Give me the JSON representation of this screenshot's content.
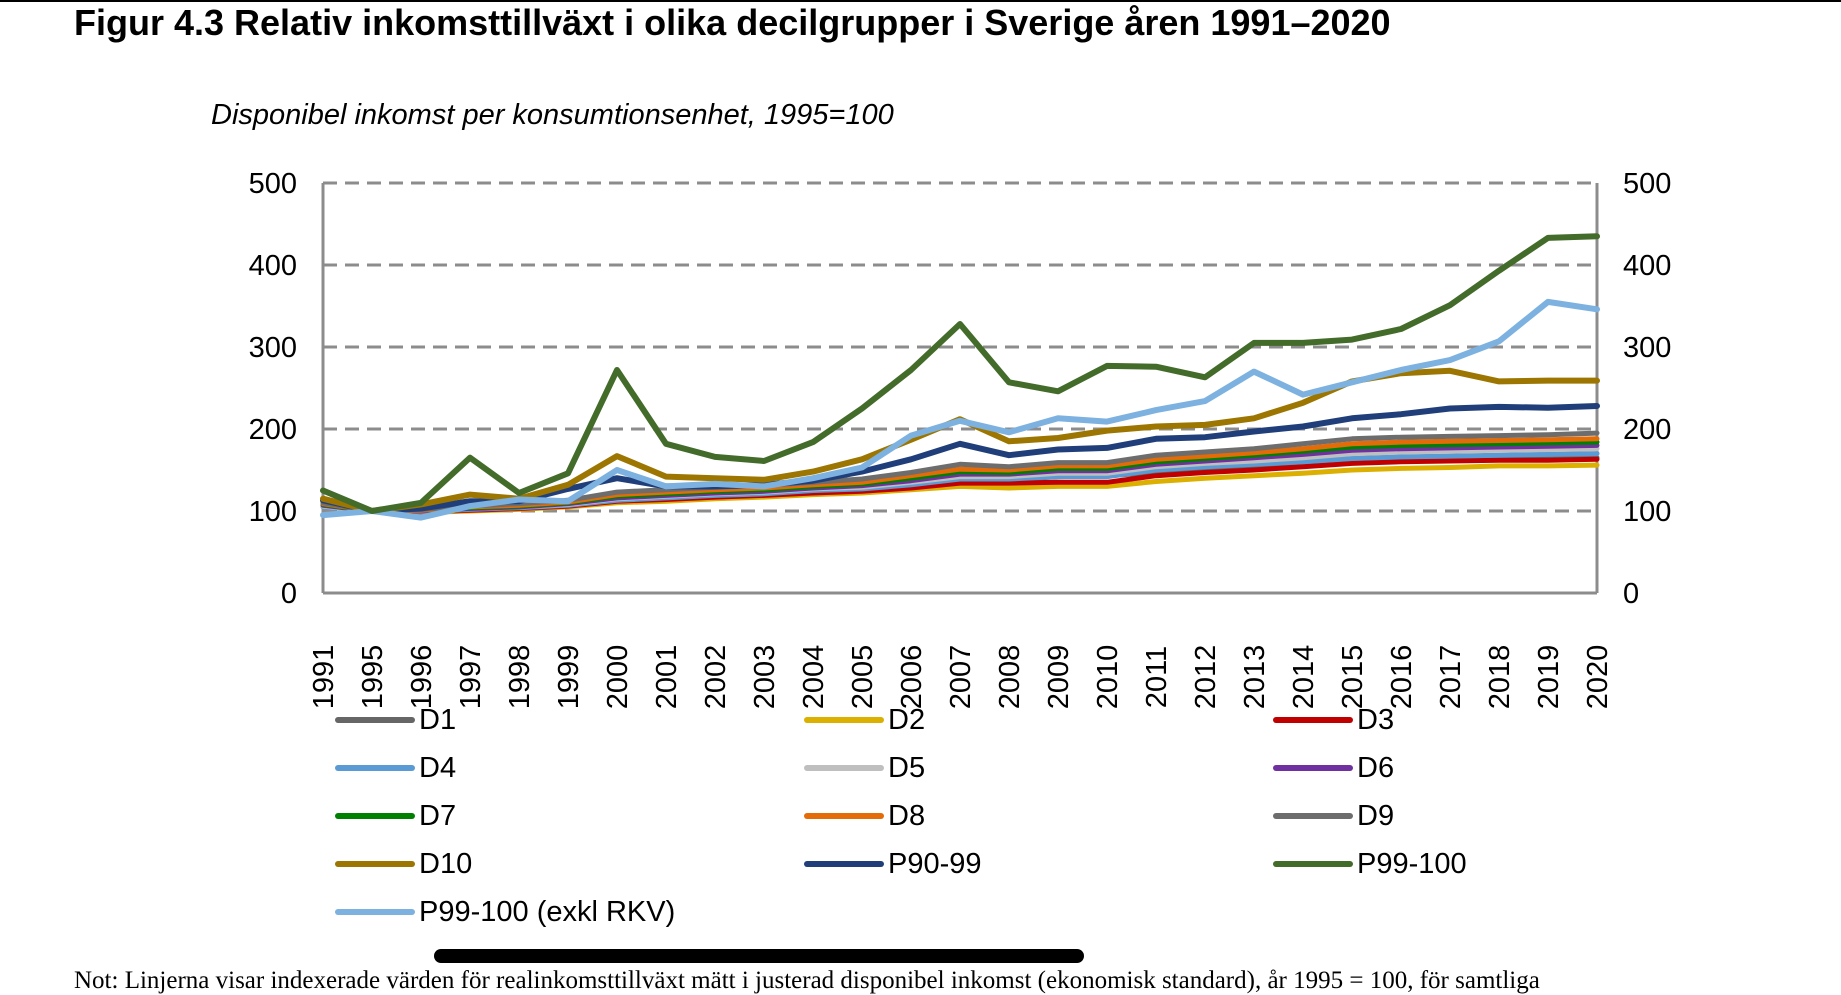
{
  "page": {
    "title": "Figur 4.3 Relativ inkomsttillväxt i olika decilgrupper i Sverige åren 1991–2020",
    "note": "Not: Linjerna visar indexerade värden för realinkomsttillväxt mätt i justerad disponibel inkomst (ekonomisk standard), år 1995 = 100, för samtliga"
  },
  "chart_data": {
    "type": "line",
    "title": "Figur 4.3 Relativ inkomsttillväxt i olika decilgrupper i Sverige åren 1991–2020",
    "subtitle": "Disponibel inkomst per konsumtionsenhet, 1995=100",
    "xlabel": "",
    "ylabel": "Disponibel inkomst per konsumtionsenhet, 1995=100",
    "ylim": [
      0,
      500
    ],
    "yticks": [
      0,
      100,
      200,
      300,
      400,
      500
    ],
    "secondary_yaxis": true,
    "grid": "horizontal-dashed",
    "legend_position": "bottom",
    "x": [
      "1991",
      "1995",
      "1996",
      "1997",
      "1998",
      "1999",
      "2000",
      "2001",
      "2002",
      "2003",
      "2004",
      "2005",
      "2006",
      "2007",
      "2008",
      "2009",
      "2010",
      "2011",
      "2012",
      "2013",
      "2014",
      "2015",
      "2016",
      "2017",
      "2018",
      "2019",
      "2020"
    ],
    "series": [
      {
        "name": "D1",
        "color": "#666666",
        "values": [
          110,
          100,
          102,
          104,
          106,
          108,
          114,
          116,
          118,
          120,
          124,
          126,
          132,
          140,
          138,
          142,
          143,
          147,
          150,
          152,
          156,
          160,
          161,
          162,
          163,
          164,
          165
        ]
      },
      {
        "name": "D2",
        "color": "#dbb000",
        "values": [
          108,
          100,
          98,
          100,
          102,
          105,
          110,
          112,
          115,
          117,
          120,
          122,
          126,
          130,
          128,
          130,
          130,
          136,
          140,
          143,
          146,
          150,
          152,
          153,
          155,
          155,
          156
        ]
      },
      {
        "name": "D3",
        "color": "#c00000",
        "values": [
          106,
          100,
          99,
          101,
          103,
          106,
          112,
          114,
          117,
          119,
          122,
          124,
          128,
          134,
          134,
          135,
          135,
          143,
          147,
          150,
          154,
          158,
          160,
          161,
          162,
          162,
          163
        ]
      },
      {
        "name": "D4",
        "color": "#5b9bd5",
        "values": [
          105,
          100,
          99,
          102,
          104,
          107,
          113,
          116,
          119,
          121,
          125,
          127,
          132,
          139,
          139,
          142,
          142,
          150,
          154,
          157,
          160,
          164,
          166,
          167,
          168,
          169,
          170
        ]
      },
      {
        "name": "D5",
        "color": "#bfbfbf",
        "values": [
          106,
          100,
          100,
          103,
          105,
          108,
          115,
          118,
          121,
          123,
          127,
          129,
          135,
          142,
          142,
          146,
          146,
          154,
          158,
          161,
          165,
          170,
          172,
          173,
          174,
          175,
          176
        ]
      },
      {
        "name": "D6",
        "color": "#7030a0",
        "values": [
          107,
          100,
          100,
          103,
          105,
          109,
          116,
          119,
          122,
          124,
          128,
          131,
          137,
          145,
          145,
          149,
          149,
          157,
          161,
          165,
          169,
          174,
          176,
          177,
          178,
          179,
          180
        ]
      },
      {
        "name": "D7",
        "color": "#008000",
        "values": [
          108,
          100,
          101,
          104,
          106,
          110,
          118,
          121,
          124,
          126,
          130,
          133,
          140,
          148,
          147,
          152,
          152,
          160,
          164,
          168,
          173,
          178,
          180,
          181,
          182,
          183,
          184
        ]
      },
      {
        "name": "D8",
        "color": "#e36c09",
        "values": [
          109,
          100,
          101,
          105,
          107,
          111,
          120,
          123,
          126,
          128,
          132,
          135,
          143,
          151,
          150,
          155,
          155,
          163,
          167,
          171,
          176,
          182,
          184,
          185,
          186,
          187,
          188
        ]
      },
      {
        "name": "D9",
        "color": "#6d6d6d",
        "values": [
          110,
          100,
          102,
          106,
          109,
          113,
          123,
          126,
          129,
          131,
          135,
          139,
          147,
          157,
          154,
          159,
          159,
          168,
          172,
          176,
          182,
          188,
          190,
          191,
          192,
          193,
          195
        ]
      },
      {
        "name": "D10",
        "color": "#9c7600",
        "values": [
          115,
          100,
          108,
          120,
          115,
          132,
          167,
          142,
          140,
          138,
          148,
          163,
          187,
          212,
          185,
          189,
          198,
          203,
          205,
          213,
          232,
          258,
          268,
          271,
          258,
          259,
          259
        ]
      },
      {
        "name": "P90-99",
        "color": "#203f7a",
        "values": [
          113,
          100,
          103,
          112,
          112,
          127,
          140,
          130,
          130,
          132,
          137,
          148,
          163,
          182,
          168,
          175,
          177,
          188,
          190,
          197,
          203,
          213,
          218,
          225,
          227,
          226,
          228
        ]
      },
      {
        "name": "P99-100",
        "color": "#436b2a",
        "values": [
          125,
          100,
          110,
          165,
          122,
          146,
          272,
          182,
          166,
          161,
          184,
          225,
          272,
          328,
          257,
          246,
          277,
          276,
          263,
          305,
          305,
          309,
          322,
          351,
          393,
          433,
          435
        ]
      },
      {
        "name": "P99-100 (exkl RKV)",
        "color": "#7cb1e0",
        "values": [
          95,
          100,
          92,
          106,
          114,
          112,
          150,
          130,
          133,
          130,
          140,
          153,
          192,
          210,
          196,
          213,
          209,
          223,
          234,
          270,
          242,
          257,
          272,
          284,
          307,
          355,
          346
        ]
      }
    ]
  }
}
